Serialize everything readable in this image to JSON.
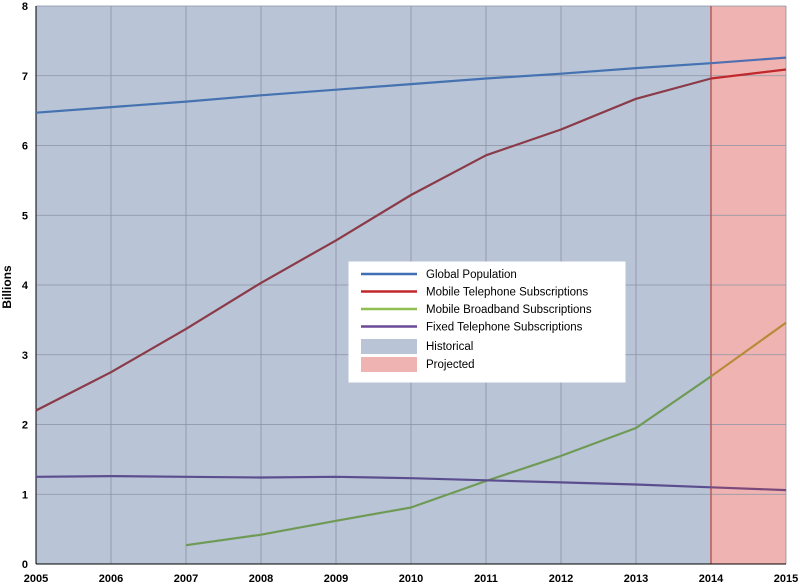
{
  "chart_data": {
    "type": "line",
    "ylabel": "Billions",
    "xlabel": "",
    "title": "",
    "x": [
      2005,
      2006,
      2007,
      2008,
      2009,
      2010,
      2011,
      2012,
      2013,
      2014,
      2015
    ],
    "xlim": [
      2005,
      2015
    ],
    "ylim": [
      0,
      8
    ],
    "yticks": [
      0,
      1,
      2,
      3,
      4,
      5,
      6,
      7,
      8
    ],
    "grid": true,
    "legend_position": "center-right",
    "regions": [
      {
        "name": "Historical",
        "from": 2005,
        "to": 2014,
        "color": "#b9c4d6"
      },
      {
        "name": "Projected",
        "from": 2014,
        "to": 2015,
        "color": "#efb4b2"
      }
    ],
    "series": [
      {
        "name": "Global Population",
        "color": "#4572b0",
        "projected_color": "#4f6fb0",
        "x": [
          2005,
          2006,
          2007,
          2008,
          2009,
          2010,
          2011,
          2012,
          2013,
          2014,
          2015
        ],
        "values": [
          6.47,
          6.55,
          6.63,
          6.72,
          6.8,
          6.88,
          6.96,
          7.03,
          7.11,
          7.18,
          7.26
        ]
      },
      {
        "name": "Mobile Telephone Subscriptions",
        "color": "#8b3a48",
        "projected_color": "#c0282c",
        "x": [
          2005,
          2006,
          2007,
          2008,
          2009,
          2010,
          2011,
          2012,
          2013,
          2014,
          2015
        ],
        "values": [
          2.2,
          2.75,
          3.37,
          4.03,
          4.64,
          5.29,
          5.86,
          6.23,
          6.67,
          6.96,
          7.09
        ]
      },
      {
        "name": "Mobile Broadband Subscriptions",
        "color": "#6f9a56",
        "projected_color": "#b98a3a",
        "x": [
          2007,
          2008,
          2009,
          2010,
          2011,
          2012,
          2013,
          2014,
          2015
        ],
        "values": [
          0.27,
          0.42,
          0.62,
          0.81,
          1.19,
          1.55,
          1.95,
          2.69,
          3.46
        ]
      },
      {
        "name": "Fixed Telephone Subscriptions",
        "color": "#5b4e8f",
        "projected_color": "#7b4a7c",
        "x": [
          2005,
          2006,
          2007,
          2008,
          2009,
          2010,
          2011,
          2012,
          2013,
          2014,
          2015
        ],
        "values": [
          1.25,
          1.26,
          1.25,
          1.24,
          1.25,
          1.23,
          1.2,
          1.17,
          1.14,
          1.1,
          1.06
        ]
      }
    ],
    "legend": {
      "lines": [
        {
          "label": "Global Population",
          "color": "#3f6fb5"
        },
        {
          "label": "Mobile Telephone Subscriptions",
          "color": "#c0282c"
        },
        {
          "label": "Mobile Broadband Subscriptions",
          "color": "#8fbf4f"
        },
        {
          "label": "Fixed Telephone Subscriptions",
          "color": "#6a4a96"
        }
      ],
      "patches": [
        {
          "label": "Historical",
          "color": "#b9c4d6"
        },
        {
          "label": "Projected",
          "color": "#efb4b2"
        }
      ]
    }
  }
}
